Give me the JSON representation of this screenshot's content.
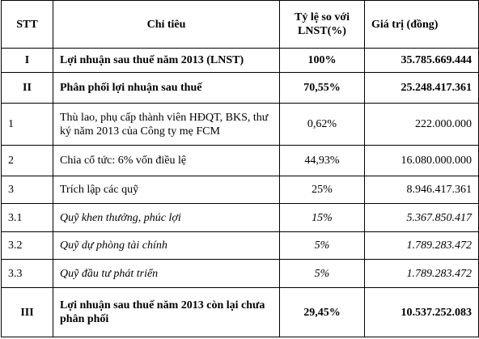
{
  "table": {
    "header": [
      "STT",
      "Chỉ tiêu",
      "Tỷ lệ so với LNST(%)",
      "Giá trị (đồng)"
    ],
    "rows": [
      [
        "I",
        "Lợi nhuận sau thuế năm 2013 (LNST)",
        "100%",
        "35.785.669.444"
      ],
      [
        "II",
        "Phân phối lợi nhuận sau thuế",
        "70,55%",
        "25.248.417.361"
      ],
      [
        "1",
        "Thù lao, phụ cấp thành viên HĐQT, BKS, thư ký năm 2013 của Công ty mẹ FCM",
        "0,62%",
        "222.000.000"
      ],
      [
        "2",
        "Chia cổ tức: 6% vốn điều lệ",
        "44,93%",
        "16.080.000.000"
      ],
      [
        "3",
        "Trích lập các quỹ",
        "25%",
        "8.946.417.361"
      ],
      [
        "3.1",
        "Quỹ khen thưởng, phúc lợi",
        "15%",
        "5.367.850.417"
      ],
      [
        "3.2",
        "Quỹ dự phòng tài chính",
        "5%",
        "1.789.283.472"
      ],
      [
        "3.3",
        "Quỹ đầu tư phát triển",
        "5%",
        "1.789.283.472"
      ],
      [
        "III",
        "Lợi nhuận sau thuế năm 2013 còn lại chưa phân phối",
        "29,45%",
        "10.537.252.083"
      ]
    ]
  }
}
